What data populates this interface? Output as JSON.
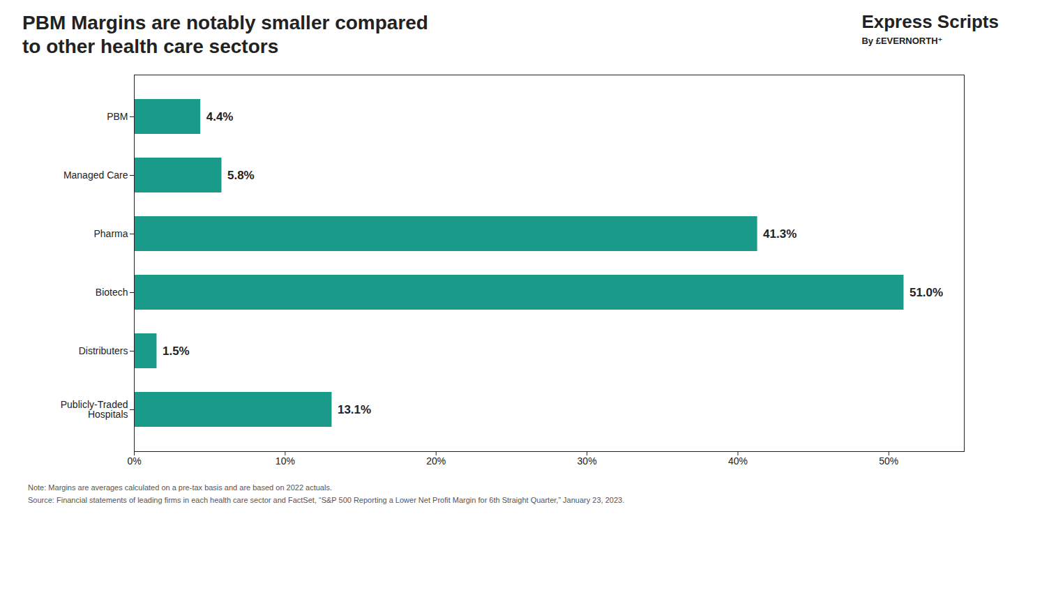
{
  "chart_data": {
    "type": "bar",
    "title": "PBM Margins are notably smaller compared\nto other health care sectors",
    "annotations": [
      "Express Scripts",
      "By £EVERNORTH⁺",
      "Note: Margins are averages calculated on a pre-tax basis and are based on 2022 actuals.",
      "Source: Financial statements of leading firms in each health care sector and FactSet, “S&P 500 Reporting a Lower Net Profit Margin for 6th Straight Quarter,” January 23, 2023."
    ],
    "categories": [
      "PBM",
      "Managed Care",
      "Pharma",
      "Biotech",
      "Distributers",
      "Publicly-Traded\nHospitals"
    ],
    "values": [
      4.4,
      5.8,
      41.3,
      51.0,
      1.5,
      13.1
    ],
    "value_labels": [
      "4.4%",
      "5.8%",
      "41.3%",
      "51.0%",
      "1.5%",
      "13.1%"
    ],
    "color": "#1a9b8a",
    "orientation": "horizontal",
    "data_labels": true,
    "grid": false,
    "xlim": [
      0,
      55
    ],
    "xticks": [
      {
        "value": 0,
        "label": "0%"
      },
      {
        "value": 10,
        "label": "10%"
      },
      {
        "value": 20,
        "label": "20%"
      },
      {
        "value": 30,
        "label": "30%"
      },
      {
        "value": 40,
        "label": "40%"
      },
      {
        "value": 50,
        "label": "50%"
      }
    ]
  }
}
